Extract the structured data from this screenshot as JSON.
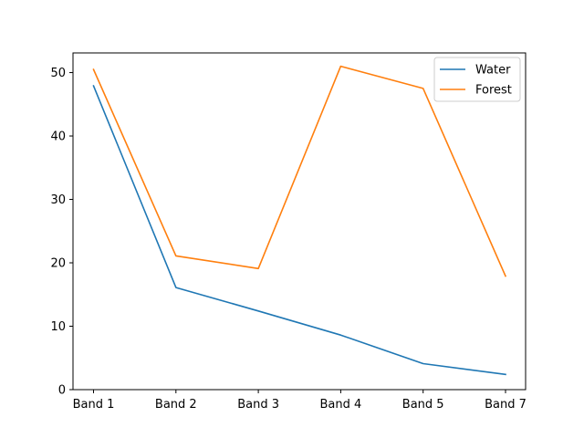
{
  "chart_data": {
    "type": "line",
    "categories": [
      "Band 1",
      "Band 2",
      "Band 3",
      "Band 4",
      "Band 5",
      "Band 7"
    ],
    "series": [
      {
        "name": "Water",
        "color": "#1f77b4",
        "values": [
          47.9,
          16.1,
          12.4,
          8.6,
          4.1,
          2.4
        ]
      },
      {
        "name": "Forest",
        "color": "#ff7f0e",
        "values": [
          50.5,
          21.1,
          19.1,
          51.0,
          47.5,
          17.9
        ]
      }
    ],
    "yticks": [
      0,
      10,
      20,
      30,
      40,
      50
    ],
    "ylim": [
      0,
      53.1
    ],
    "legend_position": "top-right",
    "grid": false
  }
}
